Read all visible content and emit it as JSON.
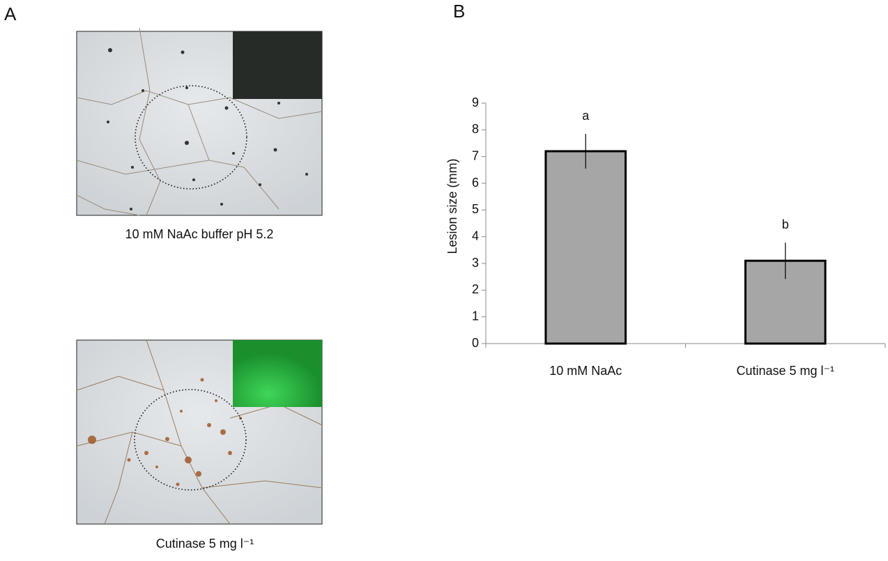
{
  "figure": {
    "panel_labels": [
      "A",
      "B"
    ],
    "captions": [
      "10 mM NaAc buffer pH 5.2",
      "Cutinase 5 mg l⁻¹"
    ]
  },
  "chart_data": {
    "type": "bar",
    "y_label": "Lesion size (mm)",
    "categories": [
      "10 mM NaAc",
      "Cutinase 5 mg l⁻¹"
    ],
    "values": [
      7.2,
      3.1
    ],
    "errors": [
      0.65,
      0.68
    ],
    "annotations": [
      "a",
      "b"
    ],
    "color": "#a6a6a6",
    "ylim": [
      0,
      9
    ],
    "yticks": [
      0,
      1,
      2,
      3,
      4,
      5,
      6,
      7,
      8,
      9
    ]
  }
}
